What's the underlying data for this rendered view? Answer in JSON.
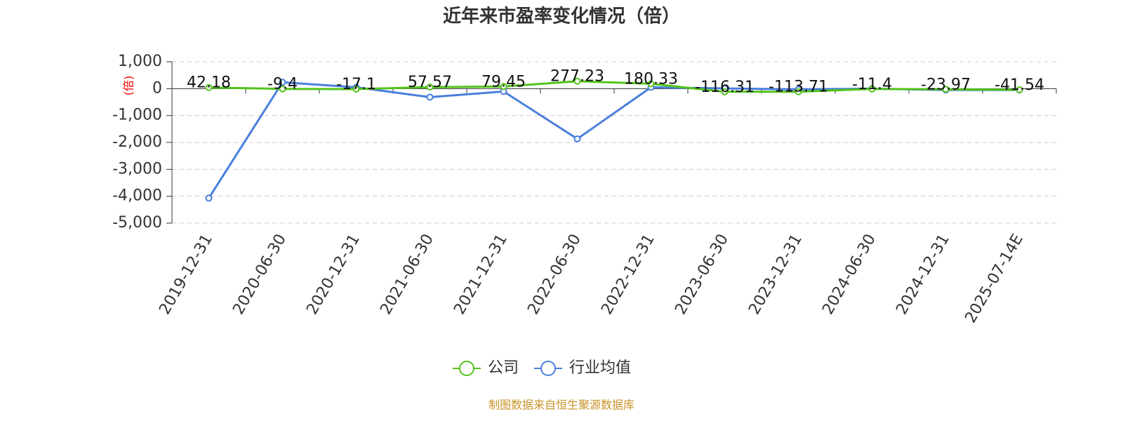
{
  "chart_data": {
    "type": "line",
    "title": "近年来市盈率变化情况（倍）",
    "y_label": "(倍)",
    "source": "制图数据来自恒生聚源数据库",
    "categories": [
      "2019-12-31",
      "2020-06-30",
      "2020-12-31",
      "2021-06-30",
      "2021-12-31",
      "2022-06-30",
      "2022-12-31",
      "2023-06-30",
      "2023-12-31",
      "2024-06-30",
      "2024-12-31",
      "2025-07-14E"
    ],
    "series": [
      {
        "name": "公司",
        "color": "#52c41a",
        "data_labels": true,
        "values": [
          42.18,
          -9.4,
          -17.1,
          57.57,
          79.45,
          277.23,
          180.33,
          -116.31,
          -113.71,
          -11.4,
          -23.97,
          -41.54
        ]
      },
      {
        "name": "行业均值",
        "color": "#4a7fdc",
        "data_labels": false,
        "values": [
          -4070,
          237,
          50,
          -316,
          -105,
          -1868,
          50,
          10,
          -26,
          0,
          -50,
          -50
        ]
      }
    ],
    "ylim": [
      -5000,
      1000
    ],
    "yticks": [
      {
        "value": 1000,
        "label": "1,000"
      },
      0,
      {
        "value": -1000,
        "label": "-1,000"
      },
      {
        "value": -2000,
        "label": "-2,000"
      },
      {
        "value": -3000,
        "label": "-3,000"
      },
      {
        "value": -4000,
        "label": "-4,000"
      },
      {
        "value": -5000,
        "label": "-5,000"
      }
    ],
    "grid": true,
    "legend": "bottom"
  }
}
